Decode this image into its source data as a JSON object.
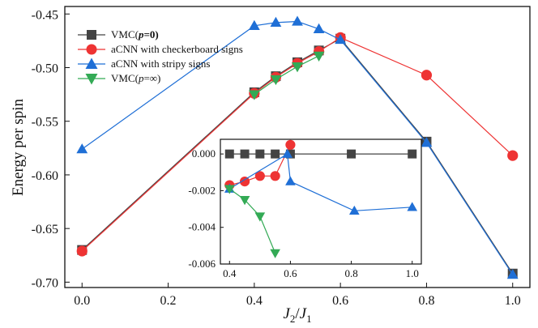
{
  "chart_data": [
    {
      "type": "line",
      "panel": "main",
      "xlabel_main": "J",
      "xlabel_sub1": "2",
      "xlabel_slash": "/",
      "xlabel_main2": "J",
      "xlabel_sub2": "1",
      "ylabel": "Energy per spin",
      "xlim": [
        -0.04,
        1.04
      ],
      "ylim": [
        -0.705,
        -0.443
      ],
      "xticks": [
        0.0,
        0.2,
        0.4,
        0.6,
        0.8,
        1.0
      ],
      "xtick_labels": [
        "0.0",
        "0.2",
        "0.4",
        "0.6",
        "0.8",
        "1.0"
      ],
      "yticks": [
        -0.45,
        -0.5,
        -0.55,
        -0.6,
        -0.65,
        -0.7
      ],
      "ytick_labels": [
        "-0.45",
        "-0.50",
        "-0.55",
        "-0.60",
        "-0.65",
        "-0.70"
      ],
      "legend_position": "top-left",
      "grid": false,
      "series": [
        {
          "name": "VMC(p=0)",
          "legend_parts": [
            "VMC(",
            "p",
            "=0)"
          ],
          "color": "#444444",
          "marker": "square",
          "x": [
            0.0,
            0.4,
            0.45,
            0.5,
            0.55,
            0.6,
            0.8,
            1.0
          ],
          "y": [
            -0.67,
            -0.523,
            -0.508,
            -0.495,
            -0.484,
            -0.473,
            -0.569,
            -0.692
          ]
        },
        {
          "name": "aCNN with checkerboard signs",
          "color": "#ee3333",
          "marker": "circle",
          "x": [
            0.0,
            0.4,
            0.45,
            0.5,
            0.55,
            0.6,
            0.8,
            1.0
          ],
          "y": [
            -0.671,
            -0.524,
            -0.509,
            -0.496,
            -0.485,
            -0.472,
            -0.507,
            -0.582
          ]
        },
        {
          "name": "aCNN with stripy signs",
          "color": "#1f6fd6",
          "marker": "triangle-up",
          "x": [
            0.0,
            0.4,
            0.45,
            0.5,
            0.55,
            0.6,
            0.8,
            1.0
          ],
          "y": [
            -0.576,
            -0.461,
            -0.458,
            -0.457,
            -0.464,
            -0.474,
            -0.57,
            -0.693
          ]
        },
        {
          "name": "VMC(p=∞)",
          "legend_parts": [
            "VMC(",
            "p",
            "=∞)"
          ],
          "color": "#33aa55",
          "marker": "triangle-down",
          "x": [
            0.4,
            0.45,
            0.5,
            0.55
          ],
          "y": [
            -0.525,
            -0.511,
            -0.499,
            -0.489
          ]
        }
      ]
    },
    {
      "type": "line",
      "panel": "inset",
      "xlim": [
        0.37,
        1.03
      ],
      "ylim": [
        -0.006,
        0.0008
      ],
      "xticks": [
        0.4,
        0.6,
        0.8,
        1.0
      ],
      "xtick_labels": [
        "0.4",
        "0.6",
        "0.8",
        "1.0"
      ],
      "yticks": [
        0.0,
        -0.002,
        -0.004,
        -0.006
      ],
      "ytick_labels": [
        "0.000",
        "-0.002",
        "-0.004",
        "-0.006"
      ],
      "grid": false,
      "series": [
        {
          "name": "VMC(p=0)",
          "color": "#444444",
          "marker": "square",
          "x": [
            0.4,
            0.45,
            0.5,
            0.55,
            0.6,
            0.8,
            1.0
          ],
          "y": [
            0.0,
            0.0,
            0.0,
            0.0,
            0.0,
            0.0,
            0.0
          ]
        },
        {
          "name": "aCNN with checkerboard signs",
          "color": "#ee3333",
          "marker": "circle",
          "x": [
            0.4,
            0.45,
            0.5,
            0.55,
            0.6
          ],
          "y": [
            -0.0017,
            -0.0015,
            -0.0012,
            -0.0012,
            0.0005
          ]
        },
        {
          "name": "aCNN with stripy signs",
          "color": "#1f6fd6",
          "marker": "triangle-up",
          "x": [
            0.4,
            0.59,
            0.6,
            0.81,
            1.0
          ],
          "y": [
            -0.0019,
            0.0,
            -0.0015,
            -0.0031,
            -0.0029
          ]
        },
        {
          "name": "VMC(p=∞)",
          "color": "#33aa55",
          "marker": "triangle-down",
          "x": [
            0.4,
            0.45,
            0.5,
            0.55
          ],
          "y": [
            -0.0019,
            -0.0025,
            -0.0034,
            -0.0054
          ]
        }
      ]
    }
  ]
}
